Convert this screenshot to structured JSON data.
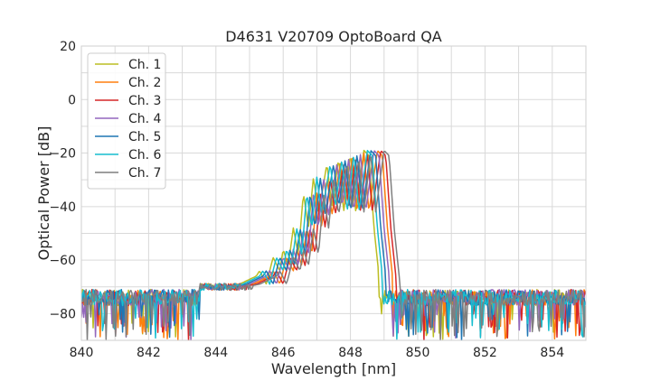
{
  "chart_data": {
    "type": "line",
    "title": "D4631 V20709 OptoBoard QA",
    "xlabel": "Wavelength [nm]",
    "ylabel": "Optical Power [dB]",
    "xlim": [
      840,
      855
    ],
    "ylim": [
      -90,
      20
    ],
    "xticks": [
      840,
      842,
      844,
      846,
      848,
      850,
      852,
      854
    ],
    "yticks": [
      20,
      0,
      -20,
      -40,
      -60,
      -80
    ],
    "grid": true,
    "legend_position": "top-left",
    "noise_floor_db": -74,
    "noise_floor_range": [
      -90,
      -71
    ],
    "series": [
      {
        "name": "Ch. 1",
        "color": "#bcbd22",
        "offset_nm": -0.3,
        "points": [
          [
            840,
            -74
          ],
          [
            844.6,
            -70
          ],
          [
            845.0,
            -69
          ],
          [
            845.5,
            -66
          ],
          [
            845.6,
            -64
          ],
          [
            845.8,
            -69
          ],
          [
            846.0,
            -59
          ],
          [
            846.2,
            -64
          ],
          [
            846.3,
            -56
          ],
          [
            846.45,
            -62
          ],
          [
            846.6,
            -48
          ],
          [
            846.75,
            -58
          ],
          [
            846.9,
            -35
          ],
          [
            847.05,
            -48
          ],
          [
            847.2,
            -29
          ],
          [
            847.35,
            -43
          ],
          [
            847.6,
            -24
          ],
          [
            847.75,
            -40
          ],
          [
            847.95,
            -22
          ],
          [
            848.1,
            -42
          ],
          [
            848.3,
            -20
          ],
          [
            848.45,
            -42
          ],
          [
            848.7,
            -19
          ],
          [
            848.85,
            -21
          ],
          [
            849.0,
            -48
          ],
          [
            849.2,
            -72
          ],
          [
            849.5,
            -74
          ],
          [
            855,
            -74
          ]
        ]
      },
      {
        "name": "Ch. 2",
        "color": "#ff7f0e",
        "offset_nm": 0.1,
        "points": [
          [
            840,
            -74
          ],
          [
            844.6,
            -70
          ],
          [
            845.0,
            -69
          ],
          [
            845.5,
            -66
          ],
          [
            845.6,
            -64
          ],
          [
            845.8,
            -69
          ],
          [
            846.0,
            -59
          ],
          [
            846.2,
            -64
          ],
          [
            846.3,
            -56
          ],
          [
            846.45,
            -62
          ],
          [
            846.6,
            -48
          ],
          [
            846.75,
            -58
          ],
          [
            846.9,
            -35
          ],
          [
            847.05,
            -48
          ],
          [
            847.2,
            -29
          ],
          [
            847.35,
            -43
          ],
          [
            847.6,
            -24
          ],
          [
            847.75,
            -40
          ],
          [
            847.95,
            -22
          ],
          [
            848.1,
            -42
          ],
          [
            848.3,
            -20
          ],
          [
            848.45,
            -42
          ],
          [
            848.7,
            -19
          ],
          [
            848.85,
            -21
          ],
          [
            849.0,
            -48
          ],
          [
            849.2,
            -72
          ],
          [
            849.5,
            -74
          ],
          [
            855,
            -74
          ]
        ]
      },
      {
        "name": "Ch. 3",
        "color": "#d62728",
        "offset_nm": 0.2,
        "points": [
          [
            840,
            -74
          ],
          [
            844.6,
            -70
          ],
          [
            845.0,
            -69
          ],
          [
            845.5,
            -66
          ],
          [
            845.6,
            -64
          ],
          [
            845.8,
            -69
          ],
          [
            846.0,
            -59
          ],
          [
            846.2,
            -64
          ],
          [
            846.3,
            -56
          ],
          [
            846.45,
            -62
          ],
          [
            846.6,
            -48
          ],
          [
            846.75,
            -58
          ],
          [
            846.9,
            -35
          ],
          [
            847.05,
            -48
          ],
          [
            847.2,
            -29
          ],
          [
            847.35,
            -43
          ],
          [
            847.6,
            -24
          ],
          [
            847.75,
            -40
          ],
          [
            847.95,
            -22
          ],
          [
            848.1,
            -42
          ],
          [
            848.3,
            -20
          ],
          [
            848.45,
            -42
          ],
          [
            848.7,
            -19
          ],
          [
            848.85,
            -21
          ],
          [
            849.0,
            -48
          ],
          [
            849.2,
            -72
          ],
          [
            849.5,
            -74
          ],
          [
            855,
            -74
          ]
        ]
      },
      {
        "name": "Ch. 4",
        "color": "#9467bd",
        "offset_nm": 0.0,
        "points": [
          [
            840,
            -74
          ],
          [
            844.6,
            -70
          ],
          [
            845.0,
            -69
          ],
          [
            845.5,
            -66
          ],
          [
            845.6,
            -64
          ],
          [
            845.8,
            -69
          ],
          [
            846.0,
            -59
          ],
          [
            846.2,
            -64
          ],
          [
            846.3,
            -56
          ],
          [
            846.45,
            -62
          ],
          [
            846.6,
            -48
          ],
          [
            846.75,
            -58
          ],
          [
            846.9,
            -35
          ],
          [
            847.05,
            -48
          ],
          [
            847.2,
            -29
          ],
          [
            847.35,
            -43
          ],
          [
            847.6,
            -24
          ],
          [
            847.75,
            -40
          ],
          [
            847.95,
            -22
          ],
          [
            848.1,
            -42
          ],
          [
            848.3,
            -20
          ],
          [
            848.45,
            -42
          ],
          [
            848.7,
            -19
          ],
          [
            848.85,
            -21
          ],
          [
            849.0,
            -48
          ],
          [
            849.2,
            -72
          ],
          [
            849.5,
            -74
          ],
          [
            855,
            -74
          ]
        ]
      },
      {
        "name": "Ch. 5",
        "color": "#1f77b4",
        "offset_nm": -0.1,
        "points": [
          [
            840,
            -74
          ],
          [
            844.6,
            -70
          ],
          [
            845.0,
            -69
          ],
          [
            845.5,
            -66
          ],
          [
            845.6,
            -64
          ],
          [
            845.8,
            -69
          ],
          [
            846.0,
            -59
          ],
          [
            846.2,
            -64
          ],
          [
            846.3,
            -56
          ],
          [
            846.45,
            -62
          ],
          [
            846.6,
            -48
          ],
          [
            846.75,
            -58
          ],
          [
            846.9,
            -35
          ],
          [
            847.05,
            -48
          ],
          [
            847.2,
            -29
          ],
          [
            847.35,
            -43
          ],
          [
            847.6,
            -24
          ],
          [
            847.75,
            -40
          ],
          [
            847.95,
            -22
          ],
          [
            848.1,
            -42
          ],
          [
            848.3,
            -20
          ],
          [
            848.45,
            -42
          ],
          [
            848.7,
            -19
          ],
          [
            848.85,
            -21
          ],
          [
            849.0,
            -48
          ],
          [
            849.2,
            -72
          ],
          [
            849.5,
            -74
          ],
          [
            855,
            -74
          ]
        ]
      },
      {
        "name": "Ch. 6",
        "color": "#17becf",
        "offset_nm": -0.2,
        "points": [
          [
            840,
            -74
          ],
          [
            844.6,
            -70
          ],
          [
            845.0,
            -69
          ],
          [
            845.5,
            -66
          ],
          [
            845.6,
            -64
          ],
          [
            845.8,
            -69
          ],
          [
            846.0,
            -59
          ],
          [
            846.2,
            -64
          ],
          [
            846.3,
            -56
          ],
          [
            846.45,
            -62
          ],
          [
            846.6,
            -48
          ],
          [
            846.75,
            -58
          ],
          [
            846.9,
            -35
          ],
          [
            847.05,
            -48
          ],
          [
            847.2,
            -29
          ],
          [
            847.35,
            -43
          ],
          [
            847.6,
            -24
          ],
          [
            847.75,
            -40
          ],
          [
            847.95,
            -22
          ],
          [
            848.1,
            -42
          ],
          [
            848.3,
            -20
          ],
          [
            848.45,
            -42
          ],
          [
            848.7,
            -19
          ],
          [
            848.85,
            -21
          ],
          [
            849.0,
            -48
          ],
          [
            849.2,
            -72
          ],
          [
            849.5,
            -74
          ],
          [
            855,
            -74
          ]
        ]
      },
      {
        "name": "Ch. 7",
        "color": "#7f7f7f",
        "offset_nm": 0.3,
        "points": [
          [
            840,
            -74
          ],
          [
            844.6,
            -70
          ],
          [
            845.0,
            -69
          ],
          [
            845.5,
            -66
          ],
          [
            845.6,
            -64
          ],
          [
            845.8,
            -69
          ],
          [
            846.0,
            -59
          ],
          [
            846.2,
            -64
          ],
          [
            846.3,
            -56
          ],
          [
            846.45,
            -62
          ],
          [
            846.6,
            -48
          ],
          [
            846.75,
            -58
          ],
          [
            846.9,
            -35
          ],
          [
            847.05,
            -48
          ],
          [
            847.2,
            -29
          ],
          [
            847.35,
            -43
          ],
          [
            847.6,
            -24
          ],
          [
            847.75,
            -40
          ],
          [
            847.95,
            -22
          ],
          [
            848.1,
            -42
          ],
          [
            848.3,
            -20
          ],
          [
            848.45,
            -42
          ],
          [
            848.7,
            -19
          ],
          [
            848.85,
            -21
          ],
          [
            849.0,
            -48
          ],
          [
            849.2,
            -72
          ],
          [
            849.5,
            -74
          ],
          [
            855,
            -74
          ]
        ]
      }
    ]
  }
}
